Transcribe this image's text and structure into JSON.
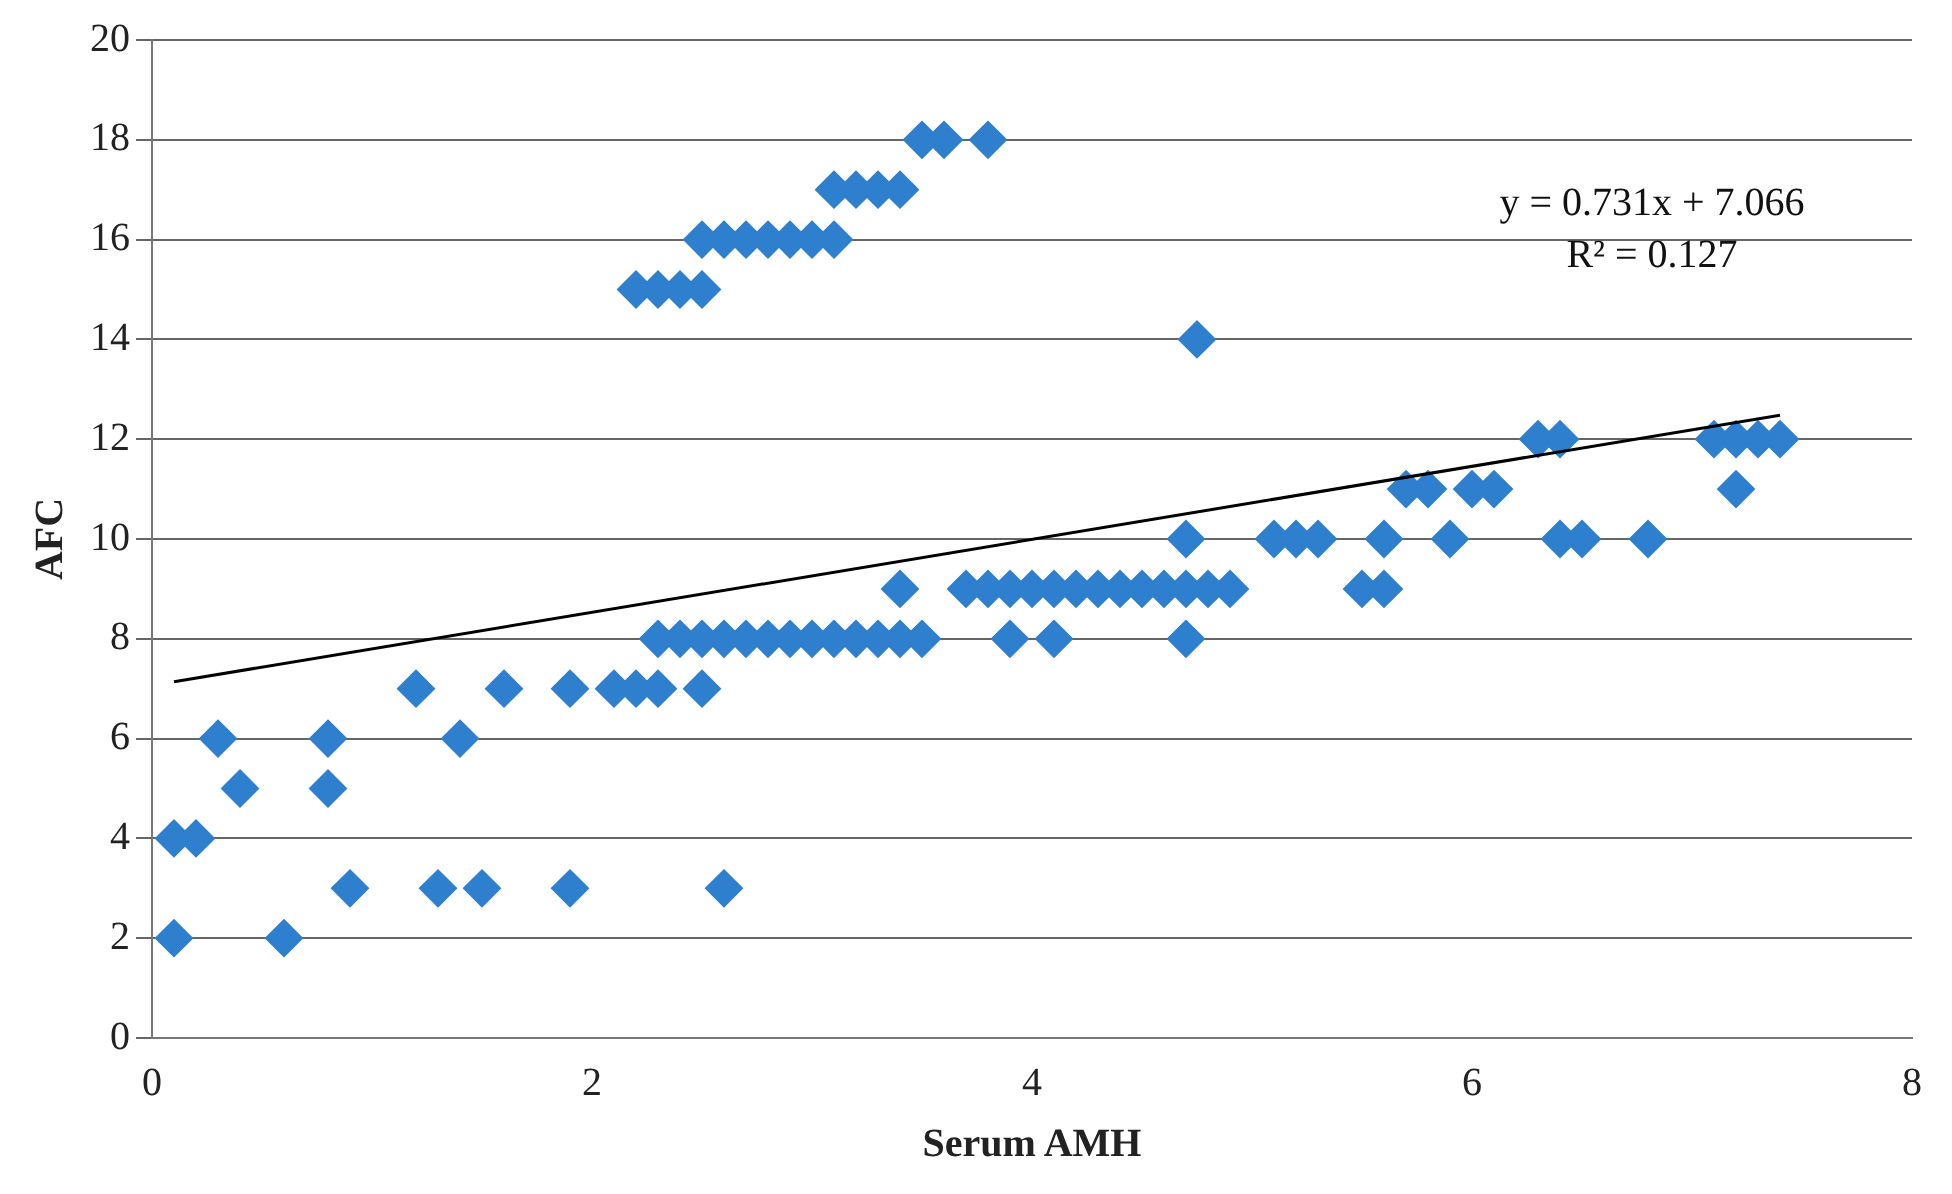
{
  "chart_data": {
    "type": "scatter",
    "xlabel": "Serum AMH",
    "ylabel": "AFC",
    "xlim": [
      0,
      8
    ],
    "xticks": [
      0,
      2,
      4,
      6,
      8
    ],
    "ylim": [
      0,
      20
    ],
    "yticks": [
      0,
      2,
      4,
      6,
      8,
      10,
      12,
      14,
      16,
      18,
      20
    ],
    "grid": "y",
    "legend": false,
    "marker": "diamond",
    "annotations": [
      "y = 0.731x + 7.066",
      "R² = 0.127"
    ],
    "series": [
      {
        "color": "#2f7fcf",
        "x": [
          0.1,
          0.6,
          0.1,
          0.2,
          0.3,
          0.8,
          0.4,
          0.8,
          0.9,
          1.3,
          1.5,
          1.9,
          2.6,
          1.2,
          1.6,
          1.9,
          2.1,
          2.2,
          2.3,
          2.5,
          1.4,
          2.2,
          2.3,
          2.4,
          2.5,
          2.5,
          2.6,
          2.7,
          2.8,
          2.9,
          3.0,
          3.1,
          3.1,
          3.2,
          3.3,
          3.4,
          3.5,
          3.6,
          3.8,
          4.75,
          2.3,
          2.4,
          2.5,
          2.6,
          2.7,
          2.8,
          2.9,
          3.0,
          3.1,
          3.2,
          3.3,
          3.4,
          3.5,
          3.4,
          3.7,
          3.8,
          3.9,
          4.0,
          4.1,
          4.2,
          4.3,
          4.4,
          4.5,
          4.6,
          4.7,
          4.8,
          4.9,
          5.5,
          5.6,
          3.9,
          4.1,
          4.7,
          4.7,
          5.1,
          5.2,
          5.3,
          5.6,
          5.9,
          6.4,
          6.5,
          6.8,
          5.7,
          5.8,
          6.0,
          6.1,
          7.2,
          6.3,
          6.4,
          7.1,
          7.2,
          7.3,
          7.4
        ],
        "values": [
          2,
          2,
          4,
          4,
          6,
          6,
          5,
          5,
          3,
          3,
          3,
          3,
          3,
          7,
          7,
          7,
          7,
          7,
          7,
          7,
          6,
          15,
          15,
          15,
          15,
          16,
          16,
          16,
          16,
          16,
          16,
          16,
          17,
          17,
          17,
          17,
          18,
          18,
          18,
          14,
          8,
          8,
          8,
          8,
          8,
          8,
          8,
          8,
          8,
          8,
          8,
          8,
          8,
          9,
          9,
          9,
          9,
          9,
          9,
          9,
          9,
          9,
          9,
          9,
          9,
          9,
          9,
          9,
          9,
          8,
          8,
          8,
          10,
          10,
          10,
          10,
          10,
          10,
          10,
          10,
          10,
          11,
          11,
          11,
          11,
          11,
          12,
          12,
          12,
          12,
          12,
          12
        ]
      },
      {
        "type": "line",
        "color": "#000000",
        "marker": "none",
        "x": [
          0.1,
          7.4
        ],
        "values": [
          7.14,
          12.48
        ]
      }
    ]
  }
}
